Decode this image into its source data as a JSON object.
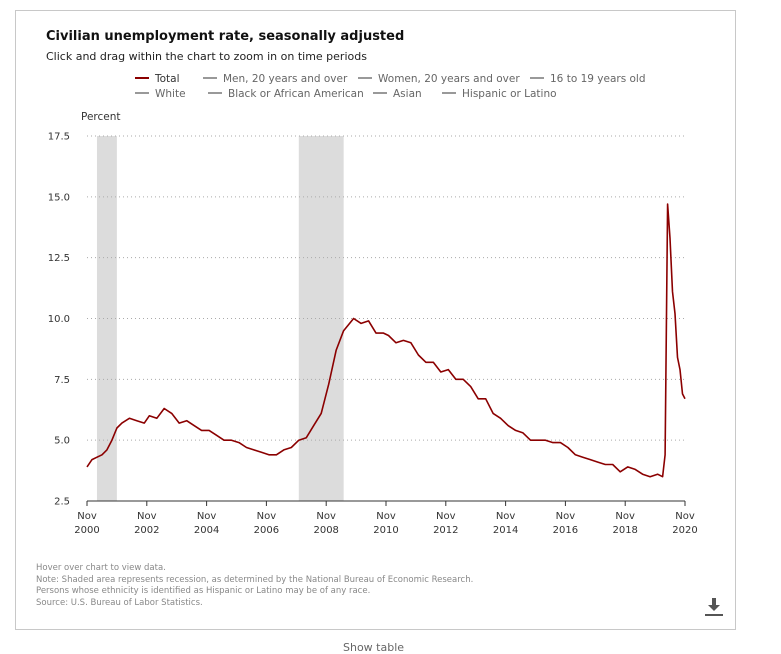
{
  "title": "Civilian unemployment rate, seasonally adjusted",
  "subtitle": "Click and drag within the chart to zoom in on time periods",
  "legend": [
    {
      "label": "Total",
      "color": "#8b0000",
      "active": true
    },
    {
      "label": "Men, 20 years and over",
      "color": "#999999",
      "active": false
    },
    {
      "label": "Women, 20 years and over",
      "color": "#999999",
      "active": false
    },
    {
      "label": "16 to 19 years old",
      "color": "#999999",
      "active": false
    },
    {
      "label": "White",
      "color": "#999999",
      "active": false
    },
    {
      "label": "Black or African American",
      "color": "#999999",
      "active": false
    },
    {
      "label": "Asian",
      "color": "#999999",
      "active": false
    },
    {
      "label": "Hispanic or Latino",
      "color": "#999999",
      "active": false
    }
  ],
  "notes": [
    "Hover over chart to view data.",
    "Note: Shaded area represents recession, as determined by the National Bureau of Economic Research.",
    "Persons whose ethnicity is identified as Hispanic or Latino may be of any race.",
    "Source: U.S. Bureau of Labor Statistics."
  ],
  "show_table_label": "Show table",
  "download_icon": "download-icon",
  "chart_data": {
    "type": "line",
    "ylabel": "Percent",
    "ylim": [
      2.5,
      17.5
    ],
    "yticks": [
      "2.5",
      "5.0",
      "7.5",
      "10.0",
      "12.5",
      "15.0",
      "17.5"
    ],
    "grid": "horizontal dotted",
    "xlim": [
      "2000-11",
      "2020-11"
    ],
    "xticks": [
      {
        "month": "Nov",
        "year": "2000"
      },
      {
        "month": "Nov",
        "year": "2002"
      },
      {
        "month": "Nov",
        "year": "2004"
      },
      {
        "month": "Nov",
        "year": "2006"
      },
      {
        "month": "Nov",
        "year": "2008"
      },
      {
        "month": "Nov",
        "year": "2010"
      },
      {
        "month": "Nov",
        "year": "2012"
      },
      {
        "month": "Nov",
        "year": "2014"
      },
      {
        "month": "Nov",
        "year": "2016"
      },
      {
        "month": "Nov",
        "year": "2018"
      },
      {
        "month": "Nov",
        "year": "2020"
      }
    ],
    "recessions": [
      {
        "start": "2001-03",
        "end": "2001-11"
      },
      {
        "start": "2007-12",
        "end": "2009-06"
      }
    ],
    "series": [
      {
        "name": "Total",
        "color": "#8b0000",
        "points": [
          [
            "2000-11",
            3.9
          ],
          [
            "2001-01",
            4.2
          ],
          [
            "2001-03",
            4.3
          ],
          [
            "2001-05",
            4.4
          ],
          [
            "2001-07",
            4.6
          ],
          [
            "2001-09",
            5.0
          ],
          [
            "2001-11",
            5.5
          ],
          [
            "2002-01",
            5.7
          ],
          [
            "2002-04",
            5.9
          ],
          [
            "2002-07",
            5.8
          ],
          [
            "2002-10",
            5.7
          ],
          [
            "2002-12",
            6.0
          ],
          [
            "2003-03",
            5.9
          ],
          [
            "2003-06",
            6.3
          ],
          [
            "2003-09",
            6.1
          ],
          [
            "2003-12",
            5.7
          ],
          [
            "2004-03",
            5.8
          ],
          [
            "2004-06",
            5.6
          ],
          [
            "2004-09",
            5.4
          ],
          [
            "2004-12",
            5.4
          ],
          [
            "2005-03",
            5.2
          ],
          [
            "2005-06",
            5.0
          ],
          [
            "2005-09",
            5.0
          ],
          [
            "2005-12",
            4.9
          ],
          [
            "2006-03",
            4.7
          ],
          [
            "2006-06",
            4.6
          ],
          [
            "2006-09",
            4.5
          ],
          [
            "2006-12",
            4.4
          ],
          [
            "2007-03",
            4.4
          ],
          [
            "2007-06",
            4.6
          ],
          [
            "2007-09",
            4.7
          ],
          [
            "2007-12",
            5.0
          ],
          [
            "2008-03",
            5.1
          ],
          [
            "2008-06",
            5.6
          ],
          [
            "2008-09",
            6.1
          ],
          [
            "2008-12",
            7.3
          ],
          [
            "2009-03",
            8.7
          ],
          [
            "2009-06",
            9.5
          ],
          [
            "2009-10",
            10.0
          ],
          [
            "2010-01",
            9.8
          ],
          [
            "2010-04",
            9.9
          ],
          [
            "2010-07",
            9.4
          ],
          [
            "2010-10",
            9.4
          ],
          [
            "2010-12",
            9.3
          ],
          [
            "2011-03",
            9.0
          ],
          [
            "2011-06",
            9.1
          ],
          [
            "2011-09",
            9.0
          ],
          [
            "2011-12",
            8.5
          ],
          [
            "2012-03",
            8.2
          ],
          [
            "2012-06",
            8.2
          ],
          [
            "2012-09",
            7.8
          ],
          [
            "2012-12",
            7.9
          ],
          [
            "2013-03",
            7.5
          ],
          [
            "2013-06",
            7.5
          ],
          [
            "2013-09",
            7.2
          ],
          [
            "2013-12",
            6.7
          ],
          [
            "2014-03",
            6.7
          ],
          [
            "2014-06",
            6.1
          ],
          [
            "2014-09",
            5.9
          ],
          [
            "2014-12",
            5.6
          ],
          [
            "2015-03",
            5.4
          ],
          [
            "2015-06",
            5.3
          ],
          [
            "2015-09",
            5.0
          ],
          [
            "2015-12",
            5.0
          ],
          [
            "2016-03",
            5.0
          ],
          [
            "2016-06",
            4.9
          ],
          [
            "2016-09",
            4.9
          ],
          [
            "2016-12",
            4.7
          ],
          [
            "2017-03",
            4.4
          ],
          [
            "2017-06",
            4.3
          ],
          [
            "2017-09",
            4.2
          ],
          [
            "2017-12",
            4.1
          ],
          [
            "2018-03",
            4.0
          ],
          [
            "2018-06",
            4.0
          ],
          [
            "2018-09",
            3.7
          ],
          [
            "2018-12",
            3.9
          ],
          [
            "2019-03",
            3.8
          ],
          [
            "2019-06",
            3.6
          ],
          [
            "2019-09",
            3.5
          ],
          [
            "2019-12",
            3.6
          ],
          [
            "2020-02",
            3.5
          ],
          [
            "2020-03",
            4.4
          ],
          [
            "2020-04",
            14.7
          ],
          [
            "2020-05",
            13.3
          ],
          [
            "2020-06",
            11.1
          ],
          [
            "2020-07",
            10.2
          ],
          [
            "2020-08",
            8.4
          ],
          [
            "2020-09",
            7.9
          ],
          [
            "2020-10",
            6.9
          ],
          [
            "2020-11",
            6.7
          ]
        ]
      }
    ]
  }
}
